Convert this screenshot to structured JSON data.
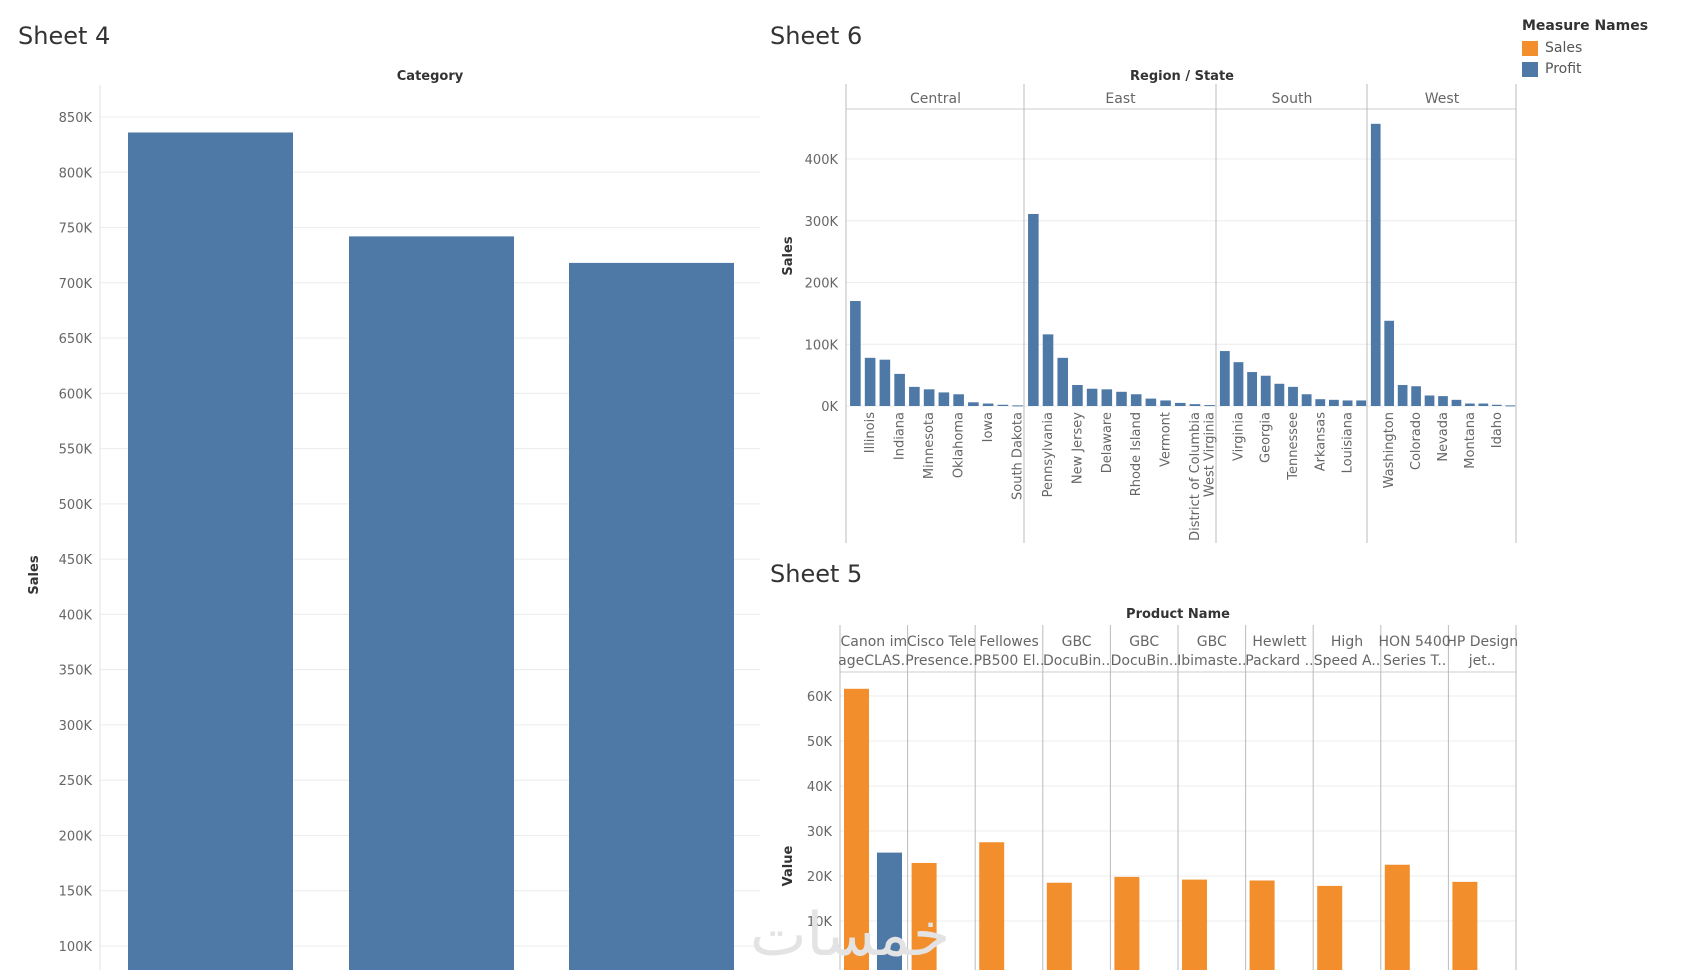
{
  "sheets": {
    "sheet4_title": "Sheet 4",
    "sheet6_title": "Sheet 6",
    "sheet5_title": "Sheet 5"
  },
  "legend": {
    "title": "Measure Names",
    "items": [
      {
        "label": "Sales",
        "color": "#f28e2b"
      },
      {
        "label": "Profit",
        "color": "#4e79a7"
      }
    ]
  },
  "watermark": "خمسات",
  "chart_data": [
    {
      "id": "sheet4",
      "type": "bar",
      "title": "Category",
      "xlabel": "Category",
      "ylabel": "Sales",
      "categories": [
        "",
        "",
        ""
      ],
      "values": [
        836000,
        742000,
        718000
      ],
      "ylim": [
        90000,
        870000
      ],
      "yticks": [
        100000,
        150000,
        200000,
        250000,
        300000,
        350000,
        400000,
        450000,
        500000,
        550000,
        600000,
        650000,
        700000,
        750000,
        800000,
        850000
      ],
      "ytick_labels": [
        "100K",
        "150K",
        "200K",
        "250K",
        "300K",
        "350K",
        "400K",
        "450K",
        "500K",
        "550K",
        "600K",
        "650K",
        "700K",
        "750K",
        "800K",
        "850K"
      ],
      "color": "#4e79a7"
    },
    {
      "id": "sheet6",
      "type": "bar",
      "title": "Region / State",
      "ylabel": "Sales",
      "ylim": [
        -13000,
        480000
      ],
      "yticks": [
        0,
        100000,
        200000,
        300000,
        400000
      ],
      "ytick_labels": [
        "0K",
        "100K",
        "200K",
        "300K",
        "400K"
      ],
      "color": "#4e79a7",
      "regions": [
        {
          "name": "Central",
          "values": [
            170000,
            78000,
            75000,
            52000,
            31000,
            27000,
            22000,
            19000,
            6000,
            4000,
            2000,
            1000
          ],
          "labels": [
            "",
            "Illinois",
            "",
            "Indiana",
            "",
            "Minnesota",
            "",
            "Oklahoma",
            "",
            "Iowa",
            "",
            "South Dakota"
          ]
        },
        {
          "name": "East",
          "values": [
            311000,
            116000,
            78000,
            34000,
            28000,
            27000,
            23000,
            19000,
            12000,
            9000,
            5000,
            3000,
            1500
          ],
          "labels": [
            "",
            "Pennsylvania",
            "",
            "New Jersey",
            "",
            "Delaware",
            "",
            "Rhode Island",
            "",
            "Vermont",
            "",
            "District of Columbia",
            "West Virginia"
          ]
        },
        {
          "name": "South",
          "values": [
            89000,
            71000,
            55000,
            49000,
            36000,
            31000,
            19000,
            11000,
            10000,
            9000,
            9000
          ],
          "labels": [
            "",
            "Virginia",
            "",
            "Georgia",
            "",
            "Tennessee",
            "",
            "Arkansas",
            "",
            "Louisiana",
            ""
          ]
        },
        {
          "name": "West",
          "values": [
            457000,
            138000,
            34000,
            32000,
            17000,
            16000,
            10000,
            4000,
            4000,
            2000,
            1000
          ],
          "labels": [
            "",
            "Washington",
            "",
            "Colorado",
            "",
            "Nevada",
            "",
            "Montana",
            "",
            "Idaho",
            ""
          ]
        }
      ]
    },
    {
      "id": "sheet5",
      "type": "bar",
      "title": "Product Name",
      "ylabel": "Value",
      "ylim": [
        9000,
        64000
      ],
      "yticks": [
        10000,
        20000,
        30000,
        40000,
        50000,
        60000
      ],
      "ytick_labels": [
        "10K",
        "20K",
        "30K",
        "40K",
        "50K",
        "60K"
      ],
      "series": [
        {
          "name": "Sales",
          "color": "#f28e2b",
          "values": [
            61600,
            22900,
            27500,
            18500,
            19800,
            19200,
            19000,
            17800,
            22500,
            18700
          ]
        },
        {
          "name": "Profit",
          "color": "#4e79a7",
          "values": [
            25200,
            null,
            null,
            null,
            null,
            null,
            null,
            null,
            null,
            null
          ]
        }
      ],
      "categories": [
        {
          "line1": "Canon im",
          "line2": "ageCLAS.."
        },
        {
          "line1": "Cisco Tele",
          "line2": "Presence.."
        },
        {
          "line1": "Fellowes",
          "line2": "PB500 El.."
        },
        {
          "line1": "GBC",
          "line2": "DocuBin.."
        },
        {
          "line1": "GBC",
          "line2": "DocuBin.."
        },
        {
          "line1": "GBC",
          "line2": "Ibimaste.."
        },
        {
          "line1": "Hewlett",
          "line2": "Packard .."
        },
        {
          "line1": "High",
          "line2": "Speed A.."
        },
        {
          "line1": "HON 5400",
          "line2": "Series T.."
        },
        {
          "line1": "HP Design",
          "line2": "jet.."
        }
      ]
    }
  ]
}
